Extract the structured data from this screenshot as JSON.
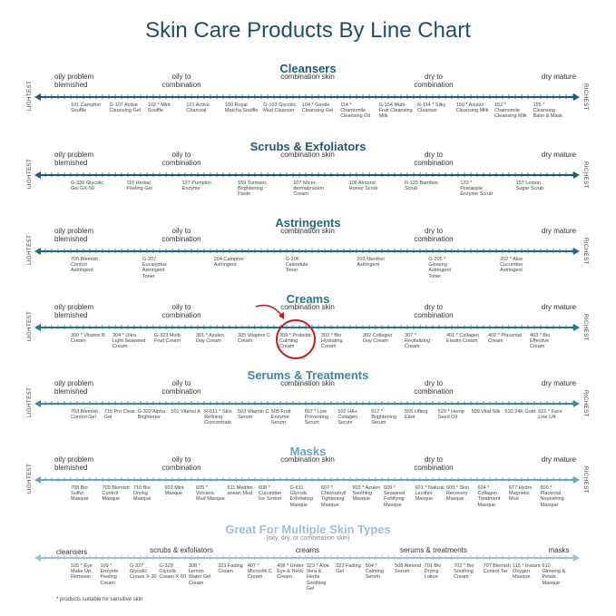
{
  "title": "Skin Care Products By Line Chart",
  "footnote": "* products suitable for sensitive skin",
  "axis": {
    "lightest": "LIGHTEST",
    "richest": "RICHEST"
  },
  "colors": {
    "title": "#1f4e66",
    "highlight": "#c4161c"
  },
  "sections": [
    {
      "title": "Cleansers",
      "color": "#1f5a74",
      "categories": [
        "oily problem blemished",
        "oily to combination",
        "combination skin",
        "dry to combination",
        "dry mature"
      ],
      "products": [
        "101 Camphor Souffle",
        "G-107 Active Cleansing Gel",
        "102 * Mint Souffle",
        "121 Active Charcoal",
        "100 Royal Matcha Souffle",
        "G-103 Glycolic Mud Cleanser",
        "104 * Gentle Cleansing Gel",
        "114 * Chamomile Cleansing Oil",
        "G-154 Multi-Fruit Cleansing Milk",
        "R-114 * Silky Cleanser",
        "150 * Azulen Cleansing Milk",
        "152 * Chamomile Cleansing Milk",
        "155 * Cleansing Balm & Mask"
      ]
    },
    {
      "title": "Scrubs & Exfoliators",
      "color": "#1f5a74",
      "categories": [
        "oily problem blemished",
        "oily to combination",
        "combination skin",
        "dry to combination",
        "dry mature"
      ],
      "products": [
        "G-330 Glycolic Gel GX-50",
        "110 Herbal Peeling Gel",
        "127 Pumpkin Enzyme",
        "159 Turmeric Brightening Paste",
        "107 Micro-dermabrasion Cream",
        "106 Almond Honey Scrub",
        "R-125 Bamboo Scrub",
        "120 * Pineapple Enzyme Scrub",
        "157 Lemon Sugar Scrub"
      ]
    },
    {
      "title": "Astringents",
      "color": "#22697f",
      "categories": [
        "oily problem blemished",
        "oily to combination",
        "combination skin",
        "dry to combination",
        "dry mature"
      ],
      "products": [
        "705 Blemish Control Astringent",
        "G-207 Eucalyptus Astringent Toner",
        "204 Camphor Astringent",
        "G-206 Calendula Toner",
        "203 Menthol Astringent",
        "G-205 * Ginseng Astringent Toner",
        "202 * Aloe Cucumber Astringent"
      ]
    },
    {
      "title": "Creams",
      "color": "#24748a",
      "categories": [
        "oily problem blemished",
        "oily to combination",
        "combination skin",
        "dry to combination",
        "dry mature"
      ],
      "products": [
        "300 * Vitamin B Cream",
        "304 * Ultra Light Seaweed Cream",
        "G-323 Multi-Fruit Cream",
        "301 * Azulen Day Cream",
        "305 Vitaplex C Cream",
        "309 * Probiotic Calming Cream",
        "303 * Bio Hydrating Cream",
        "302 Collagen Day Cream",
        "307 * Revitalizing Cream",
        "401 * Collagen Elastin Cream",
        "402 * Placental Cream",
        "403 * Bio Effective Cream"
      ]
    },
    {
      "title": "Serums & Treatments",
      "color": "#3a88a0",
      "categories": [
        "oily problem blemished",
        "oily to combination",
        "combination skin",
        "dry to combination",
        "dry mature"
      ],
      "products": [
        "703 Blemish Control Gel",
        "715 Pro Clear Gel",
        "G-322 Alpha Brightener",
        "501 Vitanol A",
        "R-511 * Skin Refining Concentrate",
        "503 Vitamin C Serum",
        "505 Fruit Enzyme Serum",
        "507 * Line Preventing Serum",
        "502 HA+ Collagen Serum",
        "517 * Brightening Serum",
        "555 Lifting Elixir",
        "529 * Hemp Seed Oil",
        "509 Vital Silk",
        "510 24K Gold",
        "515 * Face Line Lift"
      ]
    },
    {
      "title": "Masks",
      "color": "#6aa6bc",
      "categories": [
        "oily problem blemished",
        "oily to combination",
        "combination skin",
        "dry to combination",
        "dry mature"
      ],
      "products": [
        "708 Bio Sulfur Masque",
        "709 Blemish Control Masque",
        "710 Bio Drying Masque",
        "603 Mint Masque",
        "605 * Volcanic Mud Masque",
        "611 Mediter-anean Mud",
        "608 * Cucumber Ice Sorbet",
        "G-611 Glycolic Exfoliating Masque",
        "607 * Chlorophyll Tightening Masque",
        "602 * Azulen Soothing Masque",
        "609 * Seaweed Fortifying Masque",
        "601 * Natural Lecithin Masque",
        "600 * Skin Recovery Masque",
        "604 * Collagen Treatment Masque",
        "677 Hydro Magnetic Mud",
        "606 * Placental Nourishing Masque"
      ]
    },
    {
      "title": "Great For Multiple Skin Types",
      "subtitle": "(oily, dry, or combination skin)",
      "color": "#9cc2d0",
      "categories": [
        "cleansers",
        "scrubs & exfoliators",
        "creams",
        "serums & treatments",
        "masks"
      ],
      "products": [
        "105 * Eye Make Up Remover",
        "109 * Enzyme Peeling Cream",
        "G-327 Glycolic Cream X-30",
        "G-329 Glycolic Cream X-50",
        "308 * Lemon Water Gel Cream",
        "321 Fading Cream",
        "407 * Microsilk C Cream",
        "408 * Under Eye & Neck Cream",
        "323 * Aloe Vera & Herbs Soothing Gel",
        "322 Fading Gel",
        "504 * Calming Serum",
        "508 Almond Serum",
        "701 Bio Drying Lotion",
        "702 * Bio Soothing Cream",
        "707 Blemish Control Tar",
        "115 * Instant Oxygen Masque",
        "610 Ginseng & Petals Masque"
      ]
    }
  ]
}
